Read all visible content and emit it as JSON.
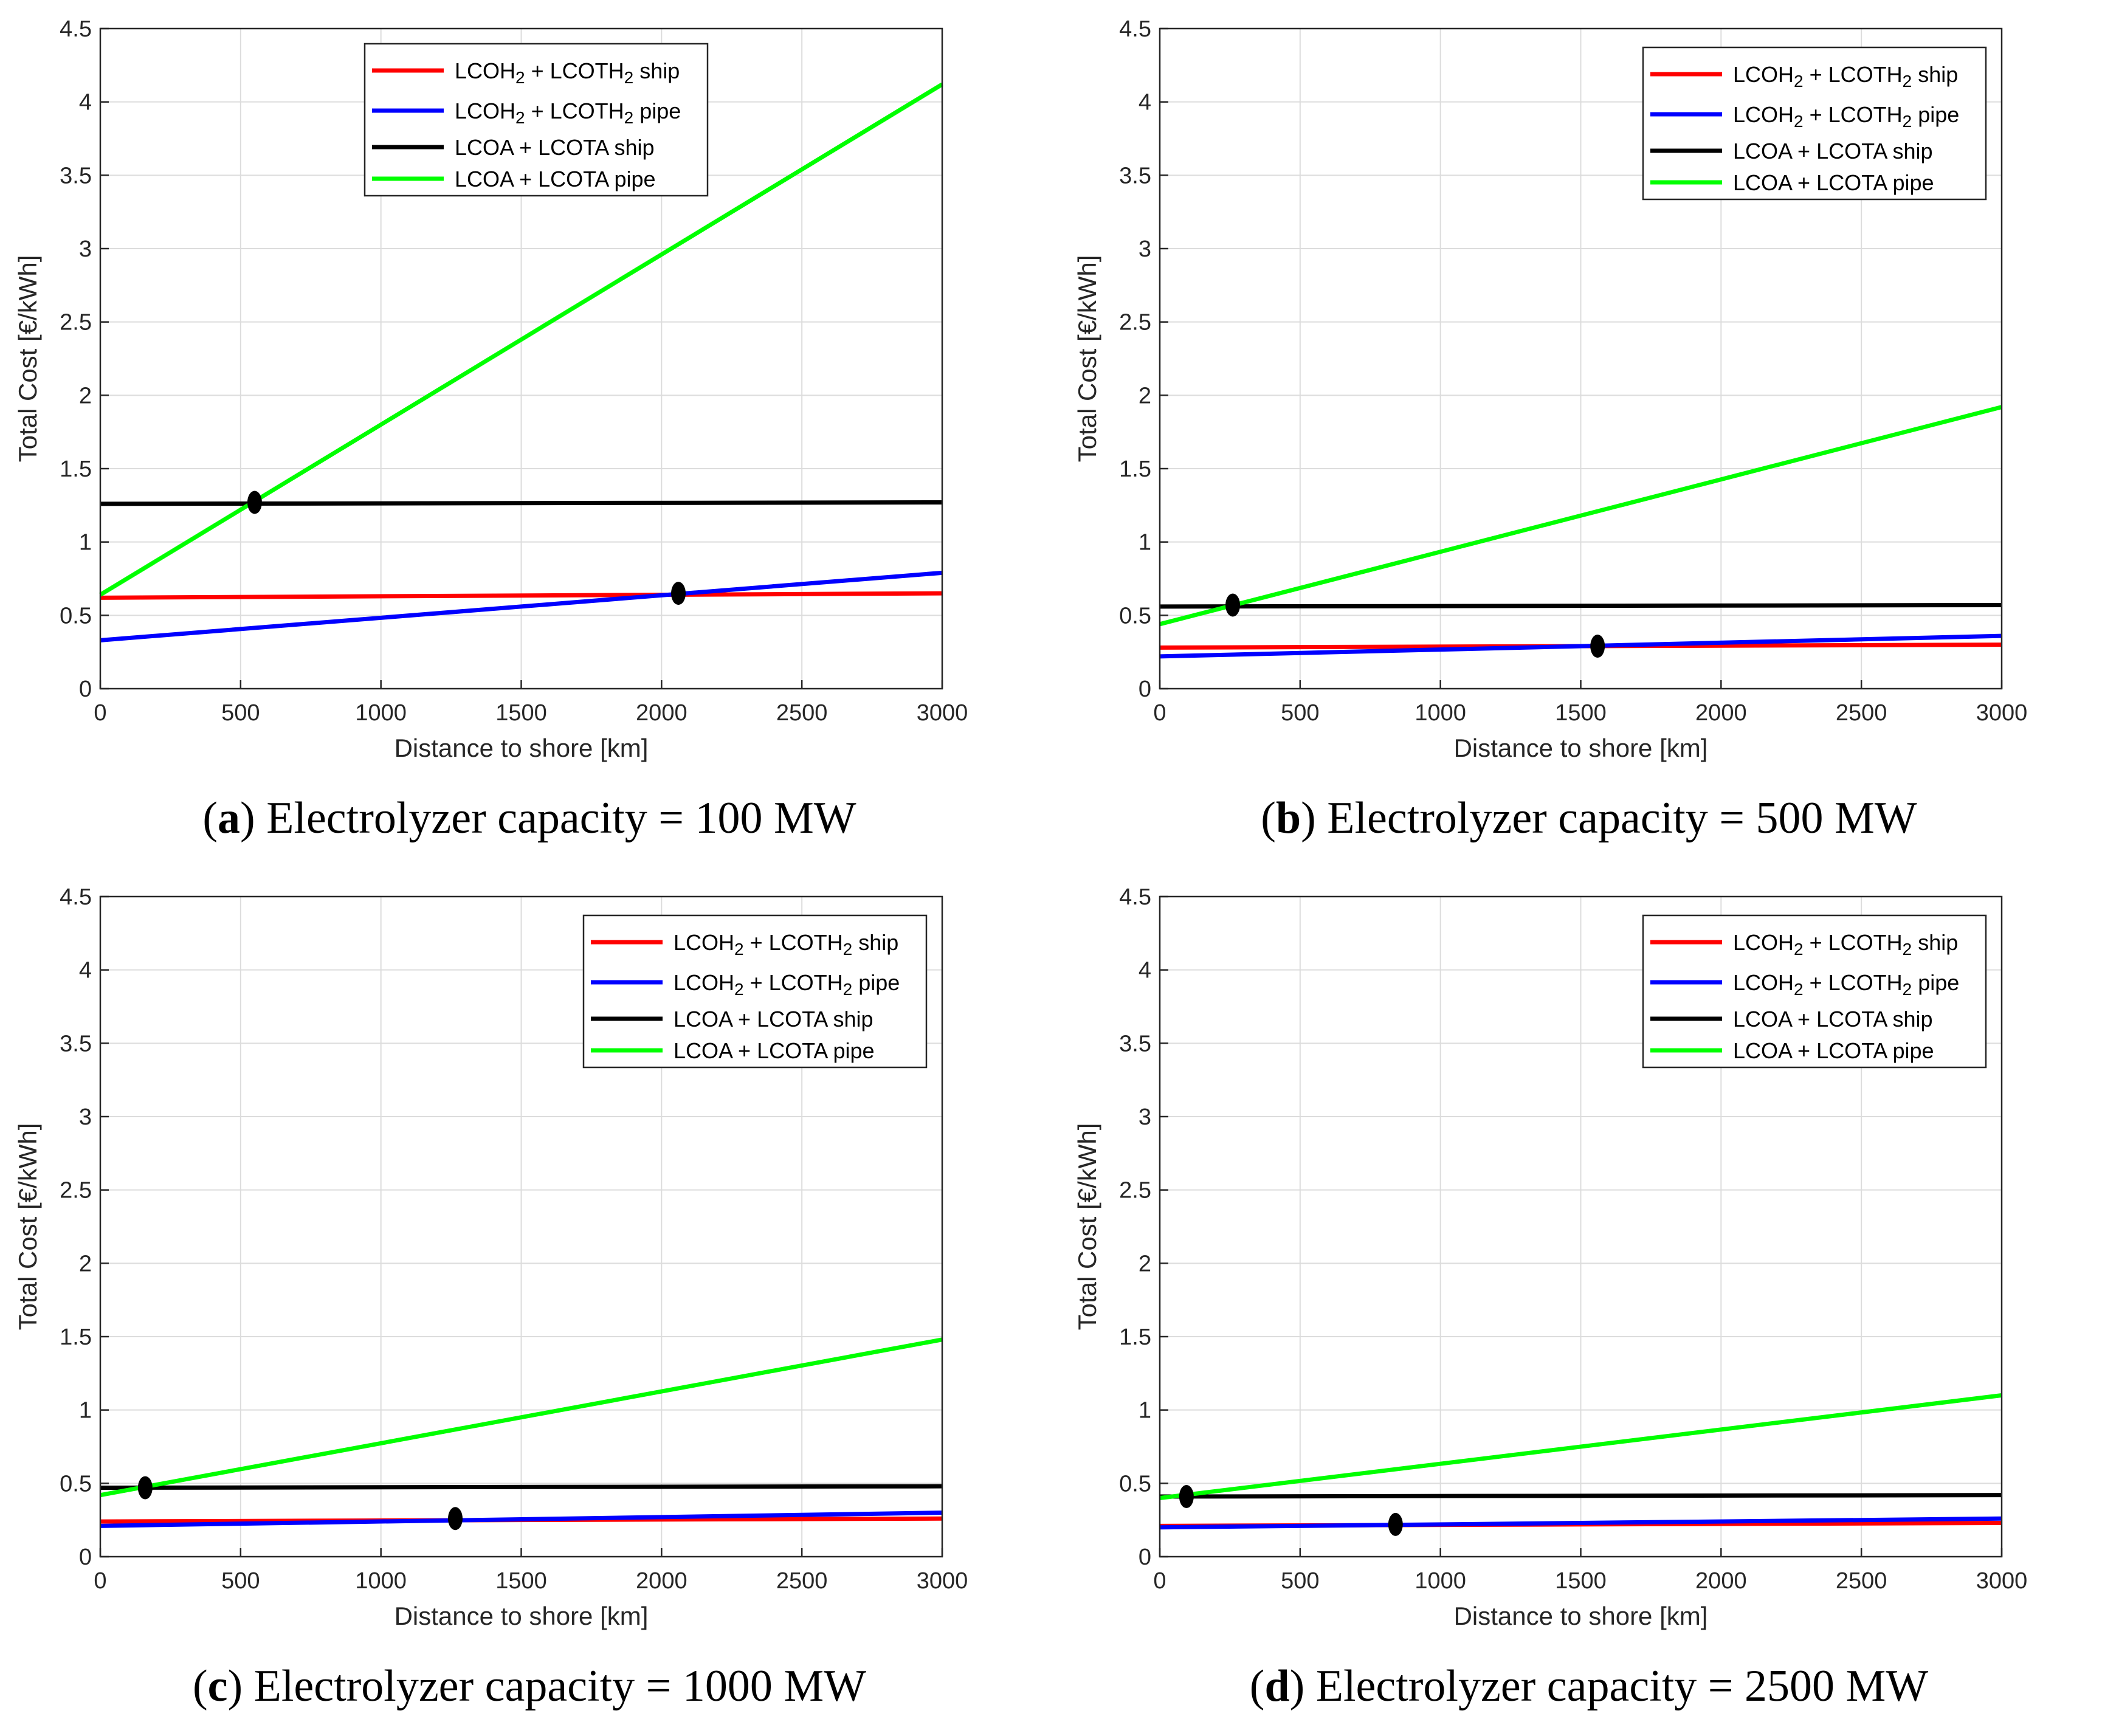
{
  "colors": {
    "ship_h2": "#ff0000",
    "pipe_h2": "#0000ff",
    "ship_nh3": "#000000",
    "pipe_nh3": "#00ff00",
    "grid": "#dcdcdc",
    "axis": "#262626"
  },
  "legend_labels": [
    {
      "base": "LCOH",
      "sub1": "2",
      "mid": " + LCOTH",
      "sub2": "2",
      "tail": " ship"
    },
    {
      "base": "LCOH",
      "sub1": "2",
      "mid": " + LCOTH",
      "sub2": "2",
      "tail": " pipe"
    },
    {
      "base": "LCOA + LCOTA ship",
      "sub1": "",
      "mid": "",
      "sub2": "",
      "tail": ""
    },
    {
      "base": "LCOA + LCOTA pipe",
      "sub1": "",
      "mid": "",
      "sub2": "",
      "tail": ""
    }
  ],
  "chart_data": [
    {
      "type": "line",
      "caption_letter": "a",
      "caption_text": " Electrolyzer capacity = 100 MW",
      "legend_position": "top-center",
      "xlabel": "Distance to shore [km]",
      "ylabel": "Total Cost [€/kWh]",
      "xlim": [
        0,
        3000
      ],
      "ylim": [
        0,
        4.5
      ],
      "xticks": [
        "0",
        "500",
        "1000",
        "1500",
        "2000",
        "2500",
        "3000"
      ],
      "yticks": [
        "0",
        "0.5",
        "1",
        "1.5",
        "2",
        "2.5",
        "3",
        "3.5",
        "4",
        "4.5"
      ],
      "grid": true,
      "series": [
        {
          "name": "LCOH2 + LCOTH2 ship",
          "x": [
            0,
            3000
          ],
          "y": [
            0.62,
            0.65
          ]
        },
        {
          "name": "LCOH2 + LCOTH2 pipe",
          "x": [
            0,
            3000
          ],
          "y": [
            0.33,
            0.79
          ]
        },
        {
          "name": "LCOA + LCOTA ship",
          "x": [
            0,
            3000
          ],
          "y": [
            1.26,
            1.27
          ]
        },
        {
          "name": "LCOA + LCOTA pipe",
          "x": [
            0,
            3000
          ],
          "y": [
            0.64,
            4.12
          ]
        }
      ],
      "intersections": [
        {
          "x": 550,
          "y": 1.27
        },
        {
          "x": 2060,
          "y": 0.65
        }
      ]
    },
    {
      "type": "line",
      "caption_letter": "b",
      "caption_text": " Electrolyzer capacity = 500 MW",
      "legend_position": "top-right",
      "xlabel": "Distance to shore [km]",
      "ylabel": "Total Cost [€/kWh]",
      "xlim": [
        0,
        3000
      ],
      "ylim": [
        0,
        4.5
      ],
      "xticks": [
        "0",
        "500",
        "1000",
        "1500",
        "2000",
        "2500",
        "3000"
      ],
      "yticks": [
        "0",
        "0.5",
        "1",
        "1.5",
        "2",
        "2.5",
        "3",
        "3.5",
        "4",
        "4.5"
      ],
      "grid": true,
      "series": [
        {
          "name": "LCOH2 + LCOTH2 ship",
          "x": [
            0,
            3000
          ],
          "y": [
            0.28,
            0.3
          ]
        },
        {
          "name": "LCOH2 + LCOTH2 pipe",
          "x": [
            0,
            3000
          ],
          "y": [
            0.22,
            0.36
          ]
        },
        {
          "name": "LCOA + LCOTA ship",
          "x": [
            0,
            3000
          ],
          "y": [
            0.56,
            0.57
          ]
        },
        {
          "name": "LCOA + LCOTA pipe",
          "x": [
            0,
            3000
          ],
          "y": [
            0.44,
            1.92
          ]
        }
      ],
      "intersections": [
        {
          "x": 260,
          "y": 0.57
        },
        {
          "x": 1560,
          "y": 0.29
        }
      ]
    },
    {
      "type": "line",
      "caption_letter": "c",
      "caption_text": " Electrolyzer capacity = 1000 MW",
      "legend_position": "top-right",
      "xlabel": "Distance to shore [km]",
      "ylabel": "Total Cost [€/kWh]",
      "xlim": [
        0,
        3000
      ],
      "ylim": [
        0,
        4.5
      ],
      "xticks": [
        "0",
        "500",
        "1000",
        "1500",
        "2000",
        "2500",
        "3000"
      ],
      "yticks": [
        "0",
        "0.5",
        "1",
        "1.5",
        "2",
        "2.5",
        "3",
        "3.5",
        "4",
        "4.5"
      ],
      "grid": true,
      "series": [
        {
          "name": "LCOH2 + LCOTH2 ship",
          "x": [
            0,
            3000
          ],
          "y": [
            0.24,
            0.26
          ]
        },
        {
          "name": "LCOH2 + LCOTH2 pipe",
          "x": [
            0,
            3000
          ],
          "y": [
            0.21,
            0.3
          ]
        },
        {
          "name": "LCOA + LCOTA ship",
          "x": [
            0,
            3000
          ],
          "y": [
            0.47,
            0.48
          ]
        },
        {
          "name": "LCOA + LCOTA pipe",
          "x": [
            0,
            3000
          ],
          "y": [
            0.42,
            1.48
          ]
        }
      ],
      "intersections": [
        {
          "x": 160,
          "y": 0.47
        },
        {
          "x": 1265,
          "y": 0.26
        }
      ]
    },
    {
      "type": "line",
      "caption_letter": "d",
      "caption_text": " Electrolyzer capacity = 2500 MW",
      "legend_position": "top-right",
      "xlabel": "Distance to shore [km]",
      "ylabel": "Total Cost [€/kWh]",
      "xlim": [
        0,
        3000
      ],
      "ylim": [
        0,
        4.5
      ],
      "xticks": [
        "0",
        "500",
        "1000",
        "1500",
        "2000",
        "2500",
        "3000"
      ],
      "yticks": [
        "0",
        "0.5",
        "1",
        "1.5",
        "2",
        "2.5",
        "3",
        "3.5",
        "4",
        "4.5"
      ],
      "grid": true,
      "series": [
        {
          "name": "LCOH2 + LCOTH2 ship",
          "x": [
            0,
            3000
          ],
          "y": [
            0.21,
            0.23
          ]
        },
        {
          "name": "LCOH2 + LCOTH2 pipe",
          "x": [
            0,
            3000
          ],
          "y": [
            0.2,
            0.26
          ]
        },
        {
          "name": "LCOA + LCOTA ship",
          "x": [
            0,
            3000
          ],
          "y": [
            0.41,
            0.42
          ]
        },
        {
          "name": "LCOA + LCOTA pipe",
          "x": [
            0,
            3000
          ],
          "y": [
            0.4,
            1.1
          ]
        }
      ],
      "intersections": [
        {
          "x": 95,
          "y": 0.41
        },
        {
          "x": 840,
          "y": 0.22
        }
      ]
    }
  ]
}
